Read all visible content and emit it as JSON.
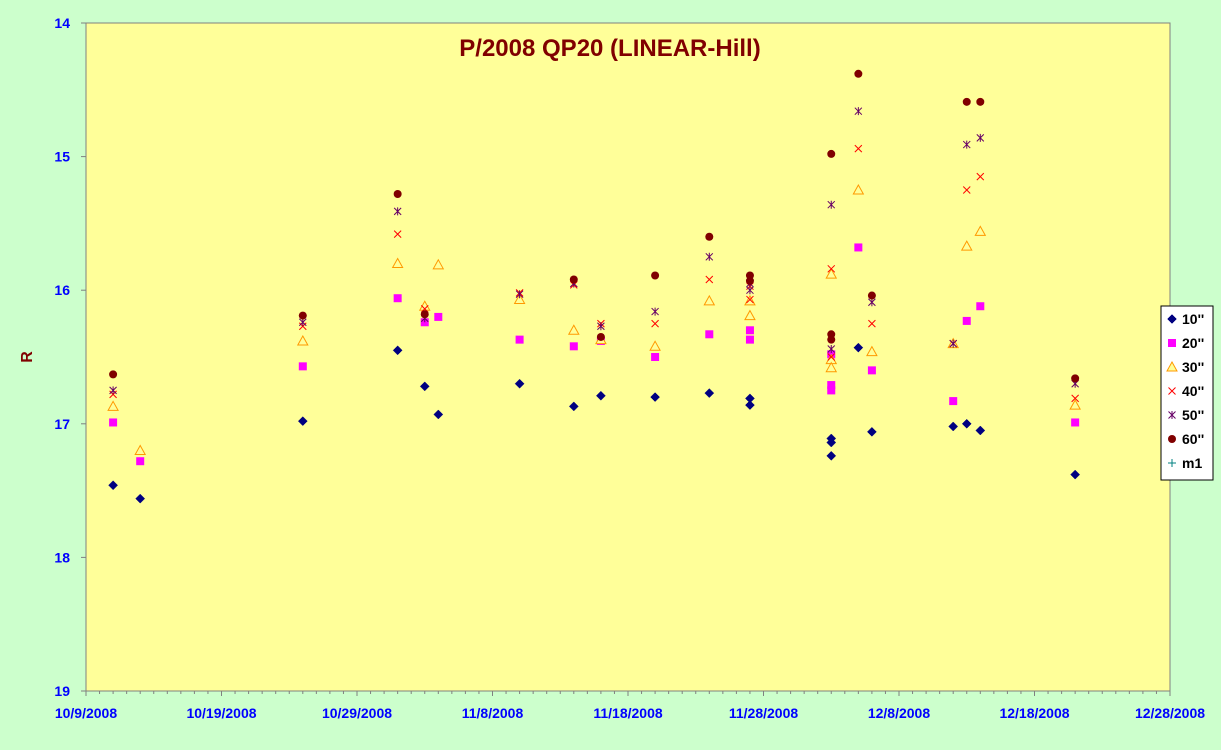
{
  "chart_data": {
    "type": "scatter",
    "title": "P/2008 QP20 (LINEAR-Hill)",
    "xlabel": "",
    "ylabel": "R",
    "x_ticks": [
      "10/9/2008",
      "10/19/2008",
      "10/29/2008",
      "11/8/2008",
      "11/18/2008",
      "11/28/2008",
      "12/8/2008",
      "12/18/2008",
      "12/28/2008"
    ],
    "x_range": [
      "2008-10-09",
      "2008-12-28"
    ],
    "y_ticks": [
      "14",
      "15",
      "16",
      "17",
      "18",
      "19"
    ],
    "ylim": [
      19,
      14
    ],
    "y_reversed": true,
    "grid": false,
    "legend_position": "right",
    "series": [
      {
        "name": "10''",
        "marker": "diamond",
        "color": "#000080",
        "points": [
          [
            "2008-10-11",
            17.46
          ],
          [
            "2008-10-13",
            17.56
          ],
          [
            "2008-10-25",
            16.98
          ],
          [
            "2008-11-01",
            16.45
          ],
          [
            "2008-11-03",
            16.72
          ],
          [
            "2008-11-04",
            16.93
          ],
          [
            "2008-11-10",
            16.7
          ],
          [
            "2008-11-14",
            16.87
          ],
          [
            "2008-11-16",
            16.79
          ],
          [
            "2008-11-20",
            16.8
          ],
          [
            "2008-11-24",
            16.77
          ],
          [
            "2008-11-27",
            16.81
          ],
          [
            "2008-11-27",
            16.86
          ],
          [
            "2008-12-03",
            17.24
          ],
          [
            "2008-12-03",
            17.11
          ],
          [
            "2008-12-03",
            17.14
          ],
          [
            "2008-12-05",
            16.43
          ],
          [
            "2008-12-06",
            17.06
          ],
          [
            "2008-12-12",
            17.02
          ],
          [
            "2008-12-13",
            17.0
          ],
          [
            "2008-12-14",
            17.05
          ],
          [
            "2008-12-21",
            17.38
          ]
        ]
      },
      {
        "name": "20''",
        "marker": "square",
        "color": "#ff00ff",
        "points": [
          [
            "2008-10-11",
            16.99
          ],
          [
            "2008-10-13",
            17.28
          ],
          [
            "2008-10-25",
            16.57
          ],
          [
            "2008-11-01",
            16.06
          ],
          [
            "2008-11-03",
            16.24
          ],
          [
            "2008-11-04",
            16.2
          ],
          [
            "2008-11-10",
            16.37
          ],
          [
            "2008-11-14",
            16.42
          ],
          [
            "2008-11-16",
            16.38
          ],
          [
            "2008-11-20",
            16.5
          ],
          [
            "2008-11-24",
            16.33
          ],
          [
            "2008-11-27",
            16.3
          ],
          [
            "2008-11-27",
            16.37
          ],
          [
            "2008-12-03",
            16.48
          ],
          [
            "2008-12-03",
            16.71
          ],
          [
            "2008-12-03",
            16.75
          ],
          [
            "2008-12-05",
            15.68
          ],
          [
            "2008-12-06",
            16.6
          ],
          [
            "2008-12-12",
            16.83
          ],
          [
            "2008-12-13",
            16.23
          ],
          [
            "2008-12-14",
            16.12
          ],
          [
            "2008-12-21",
            16.99
          ]
        ]
      },
      {
        "name": "30''",
        "marker": "triangle",
        "color": "#ff9900",
        "fill": "#ffff99",
        "points": [
          [
            "2008-10-11",
            16.87
          ],
          [
            "2008-10-13",
            17.2
          ],
          [
            "2008-10-25",
            16.38
          ],
          [
            "2008-11-01",
            15.8
          ],
          [
            "2008-11-03",
            16.12
          ],
          [
            "2008-11-04",
            15.81
          ],
          [
            "2008-11-10",
            16.07
          ],
          [
            "2008-11-14",
            16.3
          ],
          [
            "2008-11-16",
            16.37
          ],
          [
            "2008-11-20",
            16.42
          ],
          [
            "2008-11-24",
            16.08
          ],
          [
            "2008-11-27",
            16.08
          ],
          [
            "2008-11-27",
            16.19
          ],
          [
            "2008-12-03",
            15.88
          ],
          [
            "2008-12-03",
            16.52
          ],
          [
            "2008-12-03",
            16.58
          ],
          [
            "2008-12-05",
            15.25
          ],
          [
            "2008-12-06",
            16.46
          ],
          [
            "2008-12-12",
            16.4
          ],
          [
            "2008-12-13",
            15.67
          ],
          [
            "2008-12-14",
            15.56
          ],
          [
            "2008-12-21",
            16.86
          ]
        ]
      },
      {
        "name": "40''",
        "marker": "x",
        "color": "#ff0000",
        "points": [
          [
            "2008-10-11",
            16.78
          ],
          [
            "2008-10-25",
            16.27
          ],
          [
            "2008-11-01",
            15.58
          ],
          [
            "2008-11-03",
            16.14
          ],
          [
            "2008-11-10",
            16.02
          ],
          [
            "2008-11-14",
            15.96
          ],
          [
            "2008-11-16",
            16.25
          ],
          [
            "2008-11-20",
            16.25
          ],
          [
            "2008-11-24",
            15.92
          ],
          [
            "2008-11-27",
            15.97
          ],
          [
            "2008-11-27",
            16.07
          ],
          [
            "2008-12-03",
            15.84
          ],
          [
            "2008-12-03",
            16.5
          ],
          [
            "2008-12-05",
            14.94
          ],
          [
            "2008-12-06",
            16.25
          ],
          [
            "2008-12-12",
            16.4
          ],
          [
            "2008-12-13",
            15.25
          ],
          [
            "2008-12-14",
            15.15
          ],
          [
            "2008-12-21",
            16.81
          ]
        ]
      },
      {
        "name": "50''",
        "marker": "asterisk",
        "color": "#660066",
        "points": [
          [
            "2008-10-11",
            16.75
          ],
          [
            "2008-10-25",
            16.24
          ],
          [
            "2008-11-01",
            15.41
          ],
          [
            "2008-11-03",
            16.21
          ],
          [
            "2008-11-10",
            16.03
          ],
          [
            "2008-11-14",
            15.95
          ],
          [
            "2008-11-16",
            16.27
          ],
          [
            "2008-11-20",
            16.16
          ],
          [
            "2008-11-24",
            15.75
          ],
          [
            "2008-11-27",
            15.95
          ],
          [
            "2008-11-27",
            16.0
          ],
          [
            "2008-12-03",
            15.36
          ],
          [
            "2008-12-03",
            16.44
          ],
          [
            "2008-12-05",
            14.66
          ],
          [
            "2008-12-06",
            16.09
          ],
          [
            "2008-12-12",
            16.4
          ],
          [
            "2008-12-13",
            14.91
          ],
          [
            "2008-12-14",
            14.86
          ],
          [
            "2008-12-21",
            16.7
          ]
        ]
      },
      {
        "name": "60''",
        "marker": "circle",
        "color": "#800000",
        "points": [
          [
            "2008-10-11",
            16.63
          ],
          [
            "2008-10-25",
            16.19
          ],
          [
            "2008-11-01",
            15.28
          ],
          [
            "2008-11-03",
            16.18
          ],
          [
            "2008-11-14",
            15.92
          ],
          [
            "2008-11-16",
            16.35
          ],
          [
            "2008-11-20",
            15.89
          ],
          [
            "2008-11-24",
            15.6
          ],
          [
            "2008-11-27",
            15.93
          ],
          [
            "2008-11-27",
            15.89
          ],
          [
            "2008-12-03",
            14.98
          ],
          [
            "2008-12-03",
            16.33
          ],
          [
            "2008-12-03",
            16.37
          ],
          [
            "2008-12-05",
            14.38
          ],
          [
            "2008-12-06",
            16.04
          ],
          [
            "2008-12-13",
            14.59
          ],
          [
            "2008-12-14",
            14.59
          ],
          [
            "2008-12-21",
            16.66
          ]
        ]
      },
      {
        "name": "m1",
        "marker": "plus",
        "color": "#008080",
        "points": []
      }
    ]
  },
  "colors": {
    "background": "#ccffcc",
    "plot_area": "#ffff99",
    "axis": "#808080",
    "tick_label": "#0000ff",
    "title": "#800000"
  }
}
